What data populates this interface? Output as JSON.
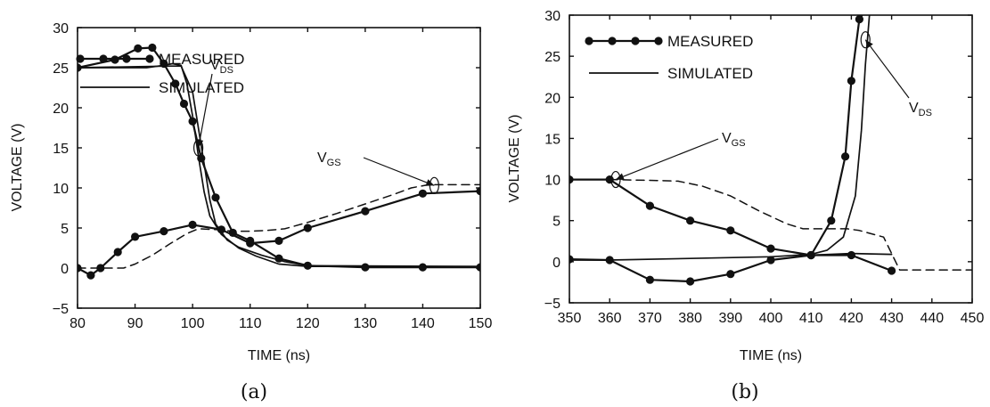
{
  "chart_data": [
    {
      "id": "a",
      "type": "line",
      "caption": "(a)",
      "xlabel": "TIME (ns)",
      "ylabel": "VOLTAGE (V)",
      "xlim": [
        80,
        150
      ],
      "ylim": [
        -5,
        30
      ],
      "xticks": [
        80,
        90,
        100,
        110,
        120,
        130,
        140,
        150
      ],
      "yticks": [
        -5,
        0,
        5,
        10,
        15,
        20,
        25,
        30
      ],
      "legend": {
        "placement": "top-right",
        "entries": [
          {
            "label": "MEASURED",
            "style": "line-dots"
          },
          {
            "label": "SIMULATED",
            "style": "line"
          }
        ]
      },
      "annotations": [
        {
          "text": "V",
          "sub": "DS",
          "target": [
            101,
            15
          ]
        },
        {
          "text": "V",
          "sub": "GS",
          "target": [
            142,
            10.3
          ]
        }
      ],
      "series": [
        {
          "style": "measured",
          "x": [
            80,
            86.5,
            90.5,
            93,
            95,
            97,
            98.5,
            100,
            101.5,
            104,
            107,
            110,
            115,
            120,
            130,
            140,
            150
          ],
          "y": [
            25,
            26,
            27.4,
            27.5,
            25.5,
            23,
            20.5,
            18.3,
            13.7,
            8.8,
            4.4,
            3.4,
            1.2,
            0.3,
            0.1,
            0.1,
            0.1
          ]
        },
        {
          "style": "measured",
          "x": [
            80,
            82.3,
            84,
            87,
            90,
            95,
            100,
            105,
            110,
            115,
            120,
            130,
            140,
            150
          ],
          "y": [
            0,
            -0.9,
            0,
            2,
            3.9,
            4.6,
            5.4,
            4.8,
            3.1,
            3.4,
            5,
            7.1,
            9.3,
            9.6
          ]
        },
        {
          "style": "simulated",
          "x": [
            80,
            92,
            95,
            96.5,
            98,
            99,
            100,
            101,
            102,
            103,
            105,
            108,
            111,
            115,
            120,
            150
          ],
          "y": [
            25,
            25,
            25.3,
            25.5,
            25.3,
            23,
            19,
            14,
            9.5,
            6.5,
            4.2,
            2.5,
            1.5,
            0.5,
            0.2,
            0.2
          ]
        },
        {
          "style": "simulated",
          "x": [
            80,
            96,
            98,
            100,
            102,
            103,
            104,
            106,
            108,
            112,
            116,
            120,
            150
          ],
          "y": [
            25,
            25.2,
            25.2,
            22,
            13,
            8.5,
            5.5,
            3.5,
            2.6,
            1.6,
            0.8,
            0.3,
            0.2
          ]
        },
        {
          "style": "dashed",
          "x": [
            80,
            88,
            90,
            93,
            96,
            99,
            101,
            104,
            107,
            110,
            113,
            116,
            120,
            125,
            130,
            135,
            138,
            141,
            145,
            150
          ],
          "y": [
            0,
            0,
            0.5,
            1.6,
            3,
            4.3,
            4.9,
            4.8,
            4.6,
            4.6,
            4.7,
            4.9,
            5.7,
            6.8,
            8,
            9.2,
            10,
            10.4,
            10.4,
            10.4
          ]
        }
      ]
    },
    {
      "id": "b",
      "type": "line",
      "caption": "(b)",
      "xlabel": "TIME (ns)",
      "ylabel": "VOLTAGE (V)",
      "xlim": [
        350,
        450
      ],
      "ylim": [
        -5,
        30
      ],
      "xticks": [
        350,
        360,
        370,
        380,
        390,
        400,
        410,
        420,
        430,
        440,
        450
      ],
      "yticks": [
        -5,
        0,
        5,
        10,
        15,
        20,
        25,
        30
      ],
      "legend": {
        "placement": "top-left",
        "entries": [
          {
            "label": "MEASURED",
            "style": "line-dots"
          },
          {
            "label": "SIMULATED",
            "style": "line"
          }
        ]
      },
      "annotations": [
        {
          "text": "V",
          "sub": "GS",
          "target": [
            361.5,
            10
          ]
        },
        {
          "text": "V",
          "sub": "DS",
          "target": [
            423.5,
            27
          ]
        }
      ],
      "series": [
        {
          "style": "measured",
          "x": [
            350,
            360,
            370,
            380,
            390,
            400,
            410
          ],
          "y": [
            10,
            10,
            6.8,
            5,
            3.8,
            1.6,
            0.8
          ]
        },
        {
          "style": "measured",
          "x": [
            350,
            360,
            370,
            380,
            390,
            400,
            410,
            415,
            418.5,
            420,
            422,
            424
          ],
          "y": [
            0.3,
            0.2,
            -2.2,
            -2.4,
            -1.5,
            0.2,
            0.8,
            5,
            12.8,
            22,
            29.5,
            31
          ]
        },
        {
          "style": "measured",
          "x": [
            410,
            420,
            430
          ],
          "y": [
            0.8,
            0.8,
            -1.1
          ]
        },
        {
          "style": "simulated",
          "x": [
            350,
            360,
            380,
            400,
            410,
            414,
            418,
            421,
            422.5,
            423.5,
            424.5,
            425
          ],
          "y": [
            0.2,
            0.2,
            0.4,
            0.6,
            0.9,
            1.4,
            3,
            8,
            16,
            24,
            30,
            32
          ]
        },
        {
          "style": "simulated",
          "x": [
            410,
            420,
            430
          ],
          "y": [
            0.8,
            1,
            0.9
          ]
        },
        {
          "style": "dashed",
          "x": [
            350,
            360,
            370,
            377,
            383,
            390,
            397,
            404,
            408,
            411,
            419,
            422,
            428,
            432,
            440,
            450
          ],
          "y": [
            10,
            10,
            9.9,
            9.8,
            9.2,
            8,
            6.2,
            4.6,
            4,
            4,
            4,
            3.8,
            3,
            -1,
            -1,
            -1
          ]
        }
      ]
    }
  ]
}
